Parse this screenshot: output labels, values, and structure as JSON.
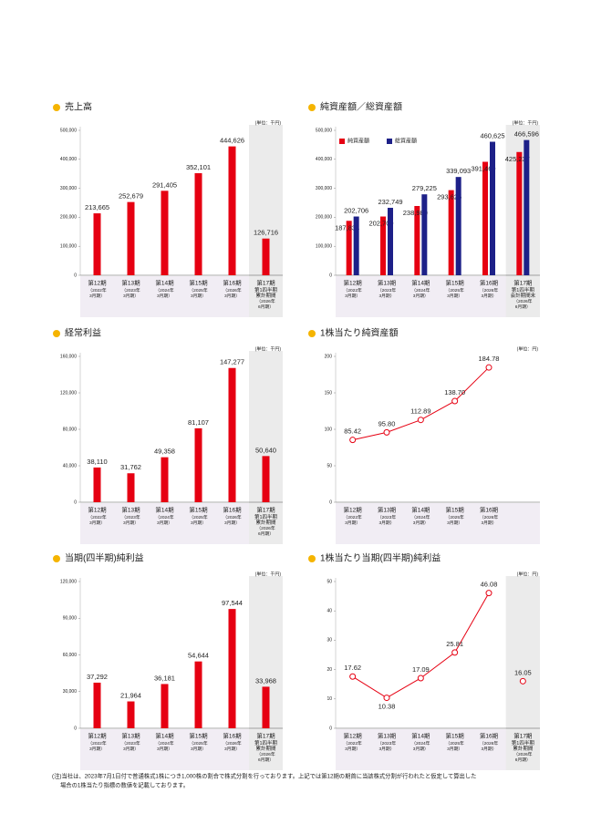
{
  "chart_data": [
    {
      "type": "bar",
      "title": "売上高",
      "unit_label": "(単位：千円)",
      "categories": [
        [
          "第12期",
          "（2022年",
          "3月期）"
        ],
        [
          "第13期",
          "（2023年",
          "3月期）"
        ],
        [
          "第14期",
          "（2024年",
          "3月期）"
        ],
        [
          "第15期",
          "（2025年",
          "3月期）"
        ],
        [
          "第16期",
          "（2026年",
          "3月期）"
        ],
        [
          "第17期",
          "第1四半期",
          "累計期間",
          "（2026年",
          "6月期）"
        ]
      ],
      "values": [
        213665,
        252679,
        291405,
        352101,
        444626,
        126716
      ],
      "value_labels": [
        "213,665",
        "252,679",
        "291,405",
        "352,101",
        "444,626",
        "126,716"
      ],
      "color": "#e60012",
      "ylim": [
        0,
        500000
      ],
      "yticks": [
        0,
        {
          "value": 100000,
          "label": "100,000"
        },
        {
          "value": 200000,
          "label": "200,000"
        },
        {
          "value": 300000,
          "label": "300,000"
        },
        {
          "value": 400000,
          "label": "400,000"
        },
        {
          "value": 500000,
          "label": "500,000"
        }
      ]
    },
    {
      "type": "bar",
      "title": "純資産額／総資産額",
      "unit_label": "(単位：千円)",
      "categories": [
        [
          "第12期",
          "（2022年",
          "3月期）"
        ],
        [
          "第13期",
          "（2023年",
          "3月期）"
        ],
        [
          "第14期",
          "（2024年",
          "3月期）"
        ],
        [
          "第15期",
          "（2025年",
          "3月期）"
        ],
        [
          "第16期",
          "（2026年",
          "3月期）"
        ],
        [
          "第17期",
          "第1四半期",
          "会計期間末",
          "（2026年",
          "6月期）"
        ]
      ],
      "series": [
        {
          "name": "純資産額",
          "color": "#e60012",
          "values": [
            187834,
            202709,
            238980,
            293625,
            391469,
            425237
          ],
          "value_labels": [
            "187,834",
            "202,709",
            "238,980",
            "293,625",
            "391,469",
            "425,237"
          ]
        },
        {
          "name": "総資産額",
          "color": "#1d2088",
          "values": [
            202706,
            232749,
            279225,
            339093,
            460625,
            466596
          ],
          "value_labels": [
            "202,706",
            "232,749",
            "279,225",
            "339,093",
            "460,625",
            "466,596"
          ]
        }
      ],
      "legend": "upper left",
      "ylim": [
        0,
        500000
      ],
      "yticks": [
        0,
        {
          "value": 100000,
          "label": "100,000"
        },
        {
          "value": 200000,
          "label": "200,000"
        },
        {
          "value": 300000,
          "label": "300,000"
        },
        {
          "value": 400000,
          "label": "400,000"
        },
        {
          "value": 500000,
          "label": "500,000"
        }
      ]
    },
    {
      "type": "bar",
      "title": "経常利益",
      "unit_label": "(単位：千円)",
      "categories": [
        [
          "第12期",
          "（2022年",
          "3月期）"
        ],
        [
          "第13期",
          "（2023年",
          "3月期）"
        ],
        [
          "第14期",
          "（2024年",
          "3月期）"
        ],
        [
          "第15期",
          "（2025年",
          "3月期）"
        ],
        [
          "第16期",
          "（2026年",
          "3月期）"
        ],
        [
          "第17期",
          "第1四半期",
          "累計期間",
          "（2026年",
          "6月期）"
        ]
      ],
      "values": [
        38110,
        31762,
        49358,
        81107,
        147277,
        50640
      ],
      "value_labels": [
        "38,110",
        "31,762",
        "49,358",
        "81,107",
        "147,277",
        "50,640"
      ],
      "color": "#e60012",
      "ylim": [
        0,
        160000
      ],
      "yticks": [
        0,
        {
          "value": 40000,
          "label": "40,000"
        },
        {
          "value": 80000,
          "label": "80,000"
        },
        {
          "value": 120000,
          "label": "120,000"
        },
        {
          "value": 160000,
          "label": "160,000"
        }
      ]
    },
    {
      "type": "line",
      "title": "1株当たり純資産額",
      "unit_label": "(単位：円)",
      "categories": [
        [
          "第12期",
          "（2022年",
          "3月期）"
        ],
        [
          "第13期",
          "（2023年",
          "3月期）"
        ],
        [
          "第14期",
          "（2024年",
          "3月期）"
        ],
        [
          "第15期",
          "（2025年",
          "3月期）"
        ],
        [
          "第16期",
          "（2026年",
          "3月期）"
        ]
      ],
      "series": [
        {
          "color": "#e60012",
          "values": [
            85.42,
            95.8,
            112.89,
            138.7,
            184.78
          ],
          "value_labels": [
            "85.42",
            "95.80",
            "112.89",
            "138.70",
            "184.78"
          ]
        }
      ],
      "ylim": [
        0,
        200
      ],
      "yticks": [
        0,
        50,
        100,
        150,
        200
      ]
    },
    {
      "type": "bar",
      "title": "当期(四半期)純利益",
      "unit_label": "(単位：千円)",
      "categories": [
        [
          "第12期",
          "（2022年",
          "3月期）"
        ],
        [
          "第13期",
          "（2023年",
          "3月期）"
        ],
        [
          "第14期",
          "（2024年",
          "3月期）"
        ],
        [
          "第15期",
          "（2025年",
          "3月期）"
        ],
        [
          "第16期",
          "（2026年",
          "3月期）"
        ],
        [
          "第17期",
          "第1四半期",
          "累計期間",
          "（2026年",
          "6月期）"
        ]
      ],
      "values": [
        37292,
        21964,
        36181,
        54644,
        97544,
        33968
      ],
      "value_labels": [
        "37,292",
        "21,964",
        "36,181",
        "54,644",
        "97,544",
        "33,968"
      ],
      "color": "#e60012",
      "ylim": [
        0,
        120000
      ],
      "yticks": [
        0,
        {
          "value": 30000,
          "label": "30,000"
        },
        {
          "value": 60000,
          "label": "60,000"
        },
        {
          "value": 90000,
          "label": "90,000"
        },
        {
          "value": 120000,
          "label": "120,000"
        }
      ]
    },
    {
      "type": "line",
      "title": "1株当たり当期(四半期)純利益",
      "unit_label": "(単位：円)",
      "categories": [
        [
          "第12期",
          "（2022年",
          "3月期）"
        ],
        [
          "第13期",
          "（2023年",
          "3月期）"
        ],
        [
          "第14期",
          "（2024年",
          "3月期）"
        ],
        [
          "第15期",
          "（2025年",
          "3月期）"
        ],
        [
          "第16期",
          "（2026年",
          "3月期）"
        ],
        [
          "第17期",
          "第1四半期",
          "累計期間",
          "（2026年",
          "6月期）"
        ]
      ],
      "series": [
        {
          "color": "#e60012",
          "values": [
            17.62,
            10.38,
            17.09,
            25.81,
            46.08,
            null
          ],
          "value_labels": [
            "17.62",
            "10.38",
            "17.09",
            "25.81",
            "46.08",
            null
          ]
        },
        {
          "color": "#e60012",
          "values": [
            null,
            null,
            null,
            null,
            null,
            16.05
          ],
          "value_labels": [
            null,
            null,
            null,
            null,
            null,
            "16.05"
          ]
        }
      ],
      "ylim": [
        0,
        50
      ],
      "yticks": [
        0,
        10,
        20,
        30,
        40,
        50
      ]
    }
  ],
  "notes": [
    "(注)当社は、2023年7月1日付で普通株式1株につき1,000株の割合で株式分割を行っております。上記では第12期の期首に当該株式分割が行われたと仮定して算出した",
    "場合の1株当たり指標の数値を記載しております。"
  ]
}
